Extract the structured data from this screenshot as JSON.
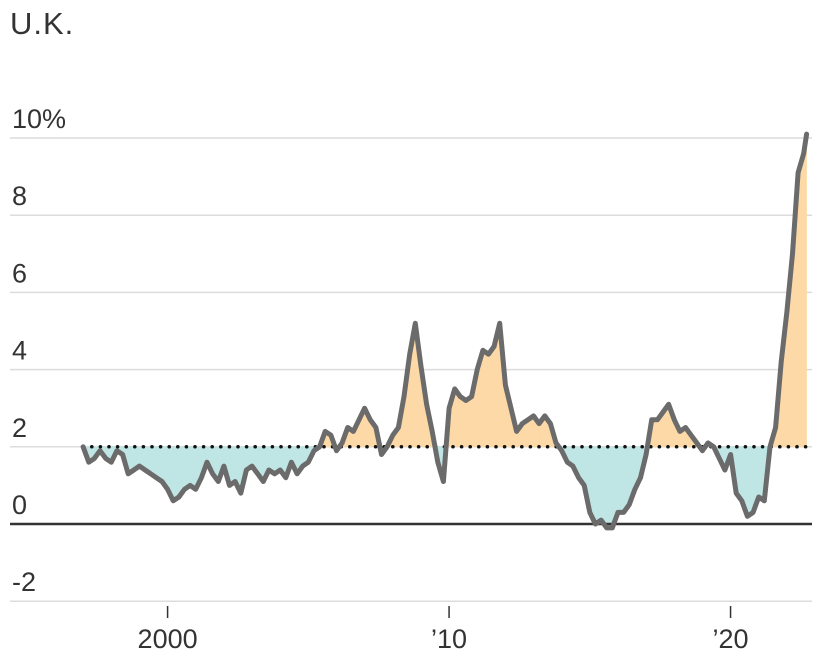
{
  "chart_data": {
    "type": "area",
    "title": "U.K.",
    "xlabel": "",
    "ylabel": "",
    "target": 2,
    "ylim": [
      -2.5,
      10.5
    ],
    "xlim": [
      1996.0,
      2023.0
    ],
    "y_ticks": [
      {
        "value": 10,
        "label": "10%"
      },
      {
        "value": 8,
        "label": "8"
      },
      {
        "value": 6,
        "label": "6"
      },
      {
        "value": 4,
        "label": "4"
      },
      {
        "value": 2,
        "label": "2"
      },
      {
        "value": 0,
        "label": "0"
      },
      {
        "value": -2,
        "label": "-2"
      }
    ],
    "x_ticks": [
      {
        "value": 2000,
        "label": "2000"
      },
      {
        "value": 2010,
        "label": "’10"
      },
      {
        "value": 2020,
        "label": "’20"
      }
    ],
    "grid": true,
    "colors": {
      "line": "#6b6b6b",
      "above_target": "#fcd9a6",
      "below_target": "#bfe6e5",
      "grid": "#dcdcdc",
      "zero_line": "#333333",
      "target_line": "#111111"
    },
    "series": [
      {
        "values": [
          [
            1997.0,
            2.0
          ],
          [
            1997.2,
            1.6
          ],
          [
            1997.4,
            1.7
          ],
          [
            1997.6,
            1.9
          ],
          [
            1997.8,
            1.7
          ],
          [
            1998.0,
            1.6
          ],
          [
            1998.2,
            1.9
          ],
          [
            1998.4,
            1.8
          ],
          [
            1998.6,
            1.3
          ],
          [
            1998.8,
            1.4
          ],
          [
            1999.0,
            1.5
          ],
          [
            1999.2,
            1.4
          ],
          [
            1999.4,
            1.3
          ],
          [
            1999.6,
            1.2
          ],
          [
            1999.8,
            1.1
          ],
          [
            2000.0,
            0.9
          ],
          [
            2000.2,
            0.6
          ],
          [
            2000.4,
            0.7
          ],
          [
            2000.6,
            0.9
          ],
          [
            2000.8,
            1.0
          ],
          [
            2001.0,
            0.9
          ],
          [
            2001.2,
            1.2
          ],
          [
            2001.4,
            1.6
          ],
          [
            2001.6,
            1.3
          ],
          [
            2001.8,
            1.1
          ],
          [
            2002.0,
            1.5
          ],
          [
            2002.2,
            1.0
          ],
          [
            2002.4,
            1.1
          ],
          [
            2002.6,
            0.8
          ],
          [
            2002.8,
            1.4
          ],
          [
            2003.0,
            1.5
          ],
          [
            2003.2,
            1.3
          ],
          [
            2003.4,
            1.1
          ],
          [
            2003.6,
            1.4
          ],
          [
            2003.8,
            1.3
          ],
          [
            2004.0,
            1.4
          ],
          [
            2004.2,
            1.2
          ],
          [
            2004.4,
            1.6
          ],
          [
            2004.6,
            1.3
          ],
          [
            2004.8,
            1.5
          ],
          [
            2005.0,
            1.6
          ],
          [
            2005.2,
            1.9
          ],
          [
            2005.4,
            2.0
          ],
          [
            2005.6,
            2.4
          ],
          [
            2005.8,
            2.3
          ],
          [
            2006.0,
            1.9
          ],
          [
            2006.2,
            2.1
          ],
          [
            2006.4,
            2.5
          ],
          [
            2006.6,
            2.4
          ],
          [
            2006.8,
            2.7
          ],
          [
            2007.0,
            3.0
          ],
          [
            2007.2,
            2.7
          ],
          [
            2007.4,
            2.5
          ],
          [
            2007.6,
            1.8
          ],
          [
            2007.8,
            2.0
          ],
          [
            2008.0,
            2.3
          ],
          [
            2008.2,
            2.5
          ],
          [
            2008.4,
            3.3
          ],
          [
            2008.6,
            4.4
          ],
          [
            2008.8,
            5.2
          ],
          [
            2009.0,
            4.1
          ],
          [
            2009.2,
            3.1
          ],
          [
            2009.4,
            2.4
          ],
          [
            2009.6,
            1.6
          ],
          [
            2009.8,
            1.1
          ],
          [
            2010.0,
            3.0
          ],
          [
            2010.2,
            3.5
          ],
          [
            2010.4,
            3.3
          ],
          [
            2010.6,
            3.2
          ],
          [
            2010.8,
            3.3
          ],
          [
            2011.0,
            4.0
          ],
          [
            2011.2,
            4.5
          ],
          [
            2011.4,
            4.4
          ],
          [
            2011.6,
            4.6
          ],
          [
            2011.8,
            5.2
          ],
          [
            2012.0,
            3.6
          ],
          [
            2012.2,
            3.0
          ],
          [
            2012.4,
            2.4
          ],
          [
            2012.6,
            2.6
          ],
          [
            2012.8,
            2.7
          ],
          [
            2013.0,
            2.8
          ],
          [
            2013.2,
            2.6
          ],
          [
            2013.4,
            2.8
          ],
          [
            2013.6,
            2.6
          ],
          [
            2013.8,
            2.1
          ],
          [
            2014.0,
            1.9
          ],
          [
            2014.2,
            1.6
          ],
          [
            2014.4,
            1.5
          ],
          [
            2014.6,
            1.2
          ],
          [
            2014.8,
            1.0
          ],
          [
            2015.0,
            0.3
          ],
          [
            2015.2,
            0.0
          ],
          [
            2015.4,
            0.1
          ],
          [
            2015.6,
            -0.1
          ],
          [
            2015.8,
            -0.1
          ],
          [
            2016.0,
            0.3
          ],
          [
            2016.2,
            0.3
          ],
          [
            2016.4,
            0.5
          ],
          [
            2016.6,
            0.9
          ],
          [
            2016.8,
            1.2
          ],
          [
            2017.0,
            1.8
          ],
          [
            2017.2,
            2.7
          ],
          [
            2017.4,
            2.7
          ],
          [
            2017.6,
            2.9
          ],
          [
            2017.8,
            3.1
          ],
          [
            2018.0,
            2.7
          ],
          [
            2018.2,
            2.4
          ],
          [
            2018.4,
            2.5
          ],
          [
            2018.6,
            2.3
          ],
          [
            2018.8,
            2.1
          ],
          [
            2019.0,
            1.9
          ],
          [
            2019.2,
            2.1
          ],
          [
            2019.4,
            2.0
          ],
          [
            2019.6,
            1.7
          ],
          [
            2019.8,
            1.4
          ],
          [
            2020.0,
            1.8
          ],
          [
            2020.2,
            0.8
          ],
          [
            2020.4,
            0.6
          ],
          [
            2020.6,
            0.2
          ],
          [
            2020.8,
            0.3
          ],
          [
            2021.0,
            0.7
          ],
          [
            2021.2,
            0.6
          ],
          [
            2021.4,
            2.0
          ],
          [
            2021.6,
            2.5
          ],
          [
            2021.8,
            4.2
          ],
          [
            2022.0,
            5.5
          ],
          [
            2022.2,
            7.0
          ],
          [
            2022.4,
            9.1
          ],
          [
            2022.6,
            9.6
          ],
          [
            2022.7,
            10.1
          ]
        ]
      }
    ]
  }
}
